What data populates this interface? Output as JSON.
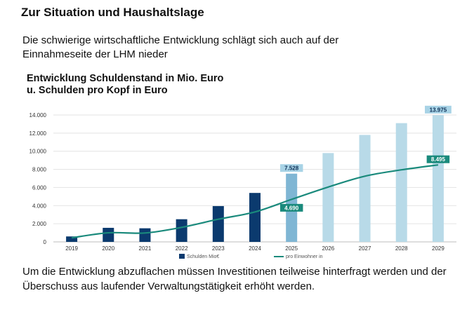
{
  "page": {
    "title": "Zur Situation und Haushaltslage",
    "intro": "Die schwierige wirtschaftliche Entwicklung schlägt sich auch auf der Einnahmeseite der LHM nieder",
    "outro": "Um die Entwicklung abzuflachen müssen Investitionen teilweise hinterfragt werden und der Überschuss aus laufender Verwaltungstätigkeit erhöht werden."
  },
  "colors": {
    "bar_actual": "#0b3a6e",
    "bar_current": "#7fb6d4",
    "bar_forecast": "#b8dae8",
    "line": "#1a8a7c",
    "label_bar_bg": "#a8d3e6",
    "label_line_bg": "#1a8a7c"
  },
  "chart_data": {
    "type": "bar",
    "title_line1": "Entwicklung Schuldenstand in Mio. Euro",
    "title_line2": "u. Schulden pro Kopf in Euro",
    "categories": [
      "2019",
      "2020",
      "2021",
      "2022",
      "2023",
      "2024",
      "2025",
      "2026",
      "2027",
      "2028",
      "2029"
    ],
    "y_ticks": [
      "0",
      "2.000",
      "4.000",
      "6.000",
      "8.000",
      "10.000",
      "12.000",
      "14.000"
    ],
    "ylim": [
      0,
      14000
    ],
    "series": [
      {
        "name": "Schulden Mio€",
        "type": "bar",
        "values": [
          600,
          1550,
          1500,
          2500,
          3950,
          5400,
          7528,
          9800,
          11800,
          13100,
          13975
        ]
      },
      {
        "name": "pro Einwohner in",
        "type": "line",
        "values": [
          450,
          1000,
          980,
          1600,
          2500,
          3300,
          4690,
          6050,
          7250,
          7950,
          8495
        ]
      }
    ],
    "data_labels": [
      {
        "series": 0,
        "index": 6,
        "text": "7.528"
      },
      {
        "series": 0,
        "index": 10,
        "text": "13.975"
      },
      {
        "series": 1,
        "index": 6,
        "text": "4.690"
      },
      {
        "series": 1,
        "index": 10,
        "text": "8.495"
      }
    ],
    "legend": [
      "Schulden Mio€",
      "pro Einwohner in"
    ],
    "legend_position": "bottom",
    "grid": true
  }
}
